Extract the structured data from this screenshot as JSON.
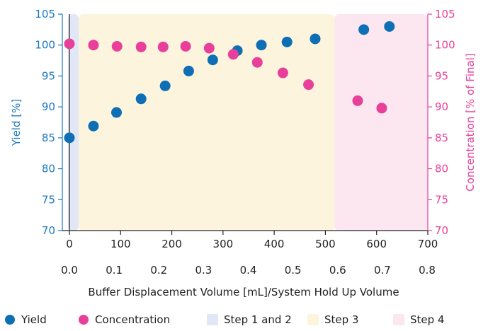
{
  "chart_data": {
    "type": "scatter",
    "title": "",
    "xlabel": "Buffer Displacement Volume [mL]/System Hold Up Volume",
    "ylabel_left": "Yield [%]",
    "ylabel_right": "Concentration [% of Final]",
    "xlim": [
      0,
      700
    ],
    "x_ticks": [
      "0",
      "100",
      "200",
      "300",
      "400",
      "500",
      "600",
      "700"
    ],
    "x2_ticks": [
      "0.0",
      "0.1",
      "0.2",
      "0.3",
      "0.4",
      "0.5",
      "0.6",
      "0.7",
      "0.8"
    ],
    "ylim_left": [
      70,
      105
    ],
    "ylim_right": [
      70,
      105
    ],
    "y_ticks": [
      "70",
      "75",
      "80",
      "85",
      "90",
      "95",
      "100",
      "105"
    ],
    "colors": {
      "yield": "#0e6fb4",
      "concentration": "#e8409a",
      "axis_left": "#1b78c2",
      "axis_right": "#e8409a",
      "step12": "#e2e7f6",
      "step3": "#fdf4dd",
      "step4": "#fce6f0"
    },
    "regions": [
      {
        "name": "Step 1 and 2",
        "x_start": -3,
        "x_end": 18,
        "color": "#e2e7f6"
      },
      {
        "name": "Step 3",
        "x_start": 18,
        "x_end": 518,
        "color": "#fdf4dd"
      },
      {
        "name": "Step 4",
        "x_start": 518,
        "x_end": 700,
        "color": "#fce6f0"
      }
    ],
    "series": [
      {
        "name": "Yield",
        "axis": "left",
        "color": "#0e6fb4",
        "points": [
          [
            0,
            85
          ],
          [
            47,
            86.9
          ],
          [
            92,
            89.1
          ],
          [
            140,
            91.3
          ],
          [
            187,
            93.4
          ],
          [
            233,
            95.8
          ],
          [
            280,
            97.6
          ],
          [
            328,
            99.1
          ],
          [
            375,
            100
          ],
          [
            425,
            100.5
          ],
          [
            480,
            101
          ],
          [
            575,
            102.5
          ],
          [
            625,
            103
          ]
        ]
      },
      {
        "name": "Concentration",
        "axis": "right",
        "color": "#e8409a",
        "points": [
          [
            0,
            100.2
          ],
          [
            47,
            100
          ],
          [
            93,
            99.8
          ],
          [
            140,
            99.7
          ],
          [
            183,
            99.7
          ],
          [
            227,
            99.8
          ],
          [
            273,
            99.5
          ],
          [
            320,
            98.5
          ],
          [
            367,
            97.2
          ],
          [
            417,
            95.5
          ],
          [
            467,
            93.6
          ],
          [
            563,
            91
          ],
          [
            610,
            89.8
          ]
        ]
      }
    ],
    "legend": {
      "position": "bottom",
      "items": [
        {
          "label": "Yield",
          "kind": "circle",
          "color": "#0e6fb4"
        },
        {
          "label": "Concentration",
          "kind": "circle",
          "color": "#e8409a"
        },
        {
          "label": "Step 1 and 2",
          "kind": "square",
          "color": "#e2e7f6"
        },
        {
          "label": "Step 3",
          "kind": "square",
          "color": "#fdf4dd"
        },
        {
          "label": "Step 4",
          "kind": "square",
          "color": "#fce6f0"
        }
      ]
    }
  }
}
